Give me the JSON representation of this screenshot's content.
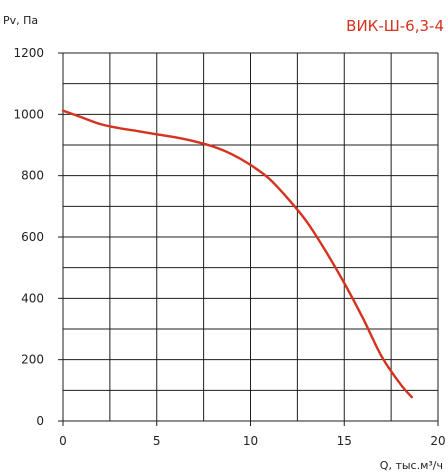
{
  "chart_data": {
    "type": "line",
    "title": "ВИК-Ш-6,3-4",
    "title_placement": "top-right",
    "xlabel": "Q, тыс.м³/ч",
    "ylabel": "Pv, Па",
    "xlim": [
      0,
      20
    ],
    "ylim": [
      0,
      1200
    ],
    "x_ticks": [
      0,
      5,
      10,
      15,
      20
    ],
    "y_ticks": [
      0,
      200,
      400,
      600,
      800,
      1000,
      1200
    ],
    "x_tick_labels": [
      "0",
      "5",
      "10",
      "15",
      "20"
    ],
    "y_tick_labels": [
      "0",
      "200",
      "400",
      "600",
      "800",
      "1000",
      "1200"
    ],
    "grid": true,
    "x_grid_step": 2.5,
    "y_grid_step": 100,
    "legend": "none",
    "series": [
      {
        "color": "#d5321f",
        "x": [
          0,
          1,
          2,
          3,
          4,
          5,
          6,
          7,
          8,
          9,
          10,
          11,
          12,
          13,
          14,
          15,
          16,
          17,
          18,
          18.6
        ],
        "values": [
          1012,
          990,
          968,
          955,
          945,
          935,
          925,
          912,
          895,
          870,
          835,
          790,
          725,
          650,
          555,
          450,
          335,
          210,
          120,
          78
        ]
      }
    ]
  },
  "colors": {
    "grid": "#1e1e1e",
    "axis": "#1e1e1e",
    "title": "#d5321f"
  }
}
